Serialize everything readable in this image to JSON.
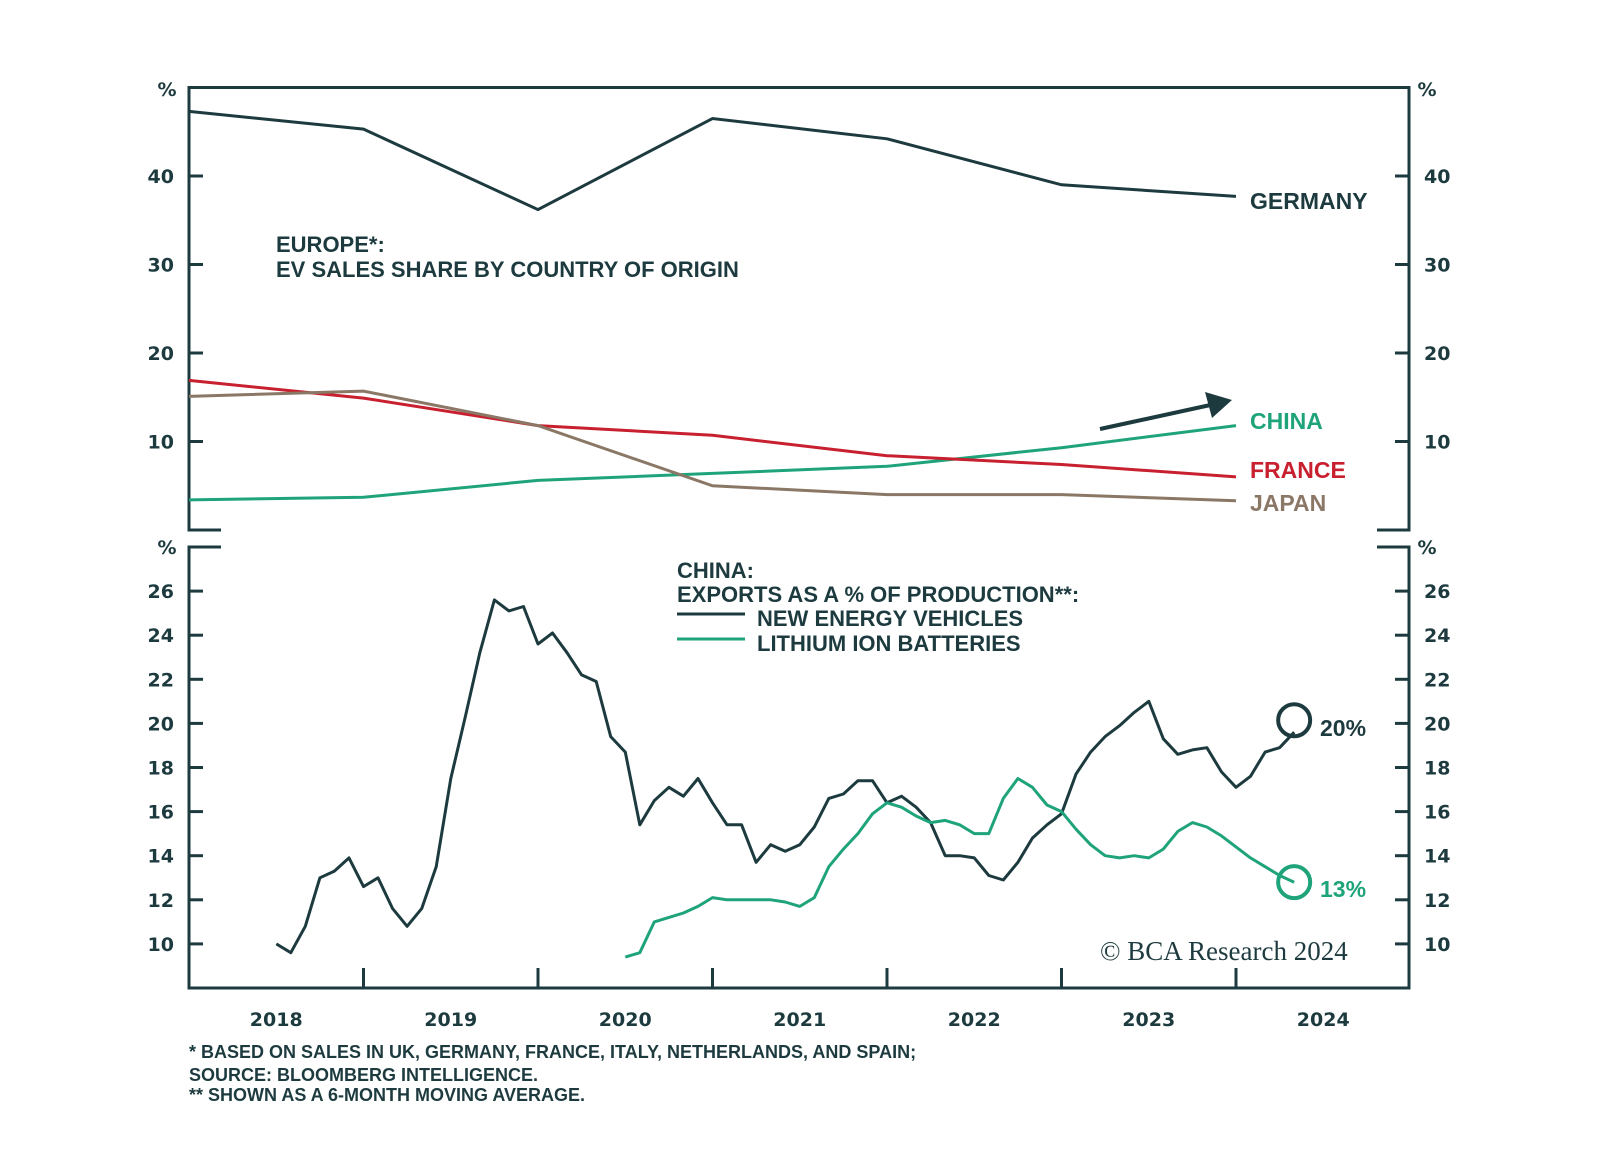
{
  "colors": {
    "axis": "#1d3b3f",
    "germany": "#1d3b3f",
    "china": "#1fa37a",
    "france": "#c8202f",
    "japan": "#8b7766",
    "nev": "#1d3b3f",
    "batteries": "#1fa37a"
  },
  "chart_data": [
    {
      "type": "line",
      "title": "EUROPE*:",
      "subtitle": "EV SALES SHARE BY COUNTRY OF ORIGIN",
      "ylabel": "%",
      "ylim": [
        0,
        50
      ],
      "yticks": [
        10,
        20,
        30,
        40
      ],
      "x": [
        2018,
        2019,
        2020,
        2021,
        2022,
        2023,
        2024
      ],
      "series": [
        {
          "name": "GERMANY",
          "values": [
            47.3,
            45.3,
            36.2,
            46.5,
            44.2,
            39.0,
            37.7
          ]
        },
        {
          "name": "CHINA",
          "values": [
            3.4,
            3.7,
            5.6,
            6.4,
            7.2,
            9.3,
            11.8
          ]
        },
        {
          "name": "FRANCE",
          "values": [
            16.9,
            14.9,
            11.8,
            10.7,
            8.4,
            7.4,
            6.0
          ]
        },
        {
          "name": "JAPAN",
          "values": [
            15.1,
            15.7,
            11.8,
            5.0,
            4.0,
            4.0,
            3.3
          ]
        }
      ],
      "grid": false
    },
    {
      "type": "line",
      "title": "CHINA:",
      "subtitle": "EXPORTS AS A % OF PRODUCTION**:",
      "ylabel": "%",
      "ylim": [
        8,
        28
      ],
      "yticks": [
        10,
        12,
        14,
        16,
        18,
        20,
        22,
        24,
        26
      ],
      "xticks": [
        "2018",
        "2019",
        "2020",
        "2021",
        "2022",
        "2023",
        "2024"
      ],
      "legend": "top-center",
      "grid": false,
      "series": [
        {
          "name": "NEW ENERGY VEHICLES",
          "start": "2018-07",
          "values": [
            10.0,
            9.6,
            10.8,
            13.0,
            13.3,
            13.9,
            12.6,
            13.0,
            11.6,
            10.8,
            11.6,
            13.5,
            17.5,
            20.3,
            23.2,
            25.6,
            25.1,
            25.3,
            23.6,
            24.1,
            23.2,
            22.2,
            21.9,
            19.4,
            18.7,
            15.4,
            16.5,
            17.1,
            16.7,
            17.5,
            16.4,
            15.4,
            15.4,
            13.7,
            14.5,
            14.2,
            14.5,
            15.3,
            16.6,
            16.8,
            17.4,
            17.4,
            16.4,
            16.7,
            16.2,
            15.5,
            14.0,
            14.0,
            13.9,
            13.1,
            12.9,
            13.7,
            14.8,
            15.4,
            15.9,
            17.7,
            18.7,
            19.4,
            19.9,
            20.5,
            21.0,
            19.3,
            18.6,
            18.8,
            18.9,
            17.8,
            17.1,
            17.6,
            18.7,
            18.9,
            19.6
          ],
          "end_label": "20%"
        },
        {
          "name": "LITHIUM ION BATTERIES",
          "start": "2020-07",
          "values": [
            9.4,
            9.6,
            11.0,
            11.2,
            11.4,
            11.7,
            12.1,
            12.0,
            12.0,
            12.0,
            12.0,
            11.9,
            11.7,
            12.1,
            13.5,
            14.3,
            15.0,
            15.9,
            16.4,
            16.2,
            15.8,
            15.5,
            15.6,
            15.4,
            15.0,
            15.0,
            16.6,
            17.5,
            17.1,
            16.3,
            16.0,
            15.2,
            14.5,
            14.0,
            13.9,
            14.0,
            13.9,
            14.3,
            15.1,
            15.5,
            15.3,
            14.9,
            14.4,
            13.9,
            13.5,
            13.1,
            12.8
          ],
          "end_label": "13%"
        }
      ]
    }
  ],
  "footnotes": [
    "* BASED ON SALES IN UK, GERMANY, FRANCE, ITALY, NETHERLANDS, AND SPAIN;",
    "SOURCE: BLOOMBERG INTELLIGENCE.",
    "** SHOWN AS A 6-MONTH MOVING AVERAGE."
  ],
  "copyright": "© BCA Research 2024"
}
